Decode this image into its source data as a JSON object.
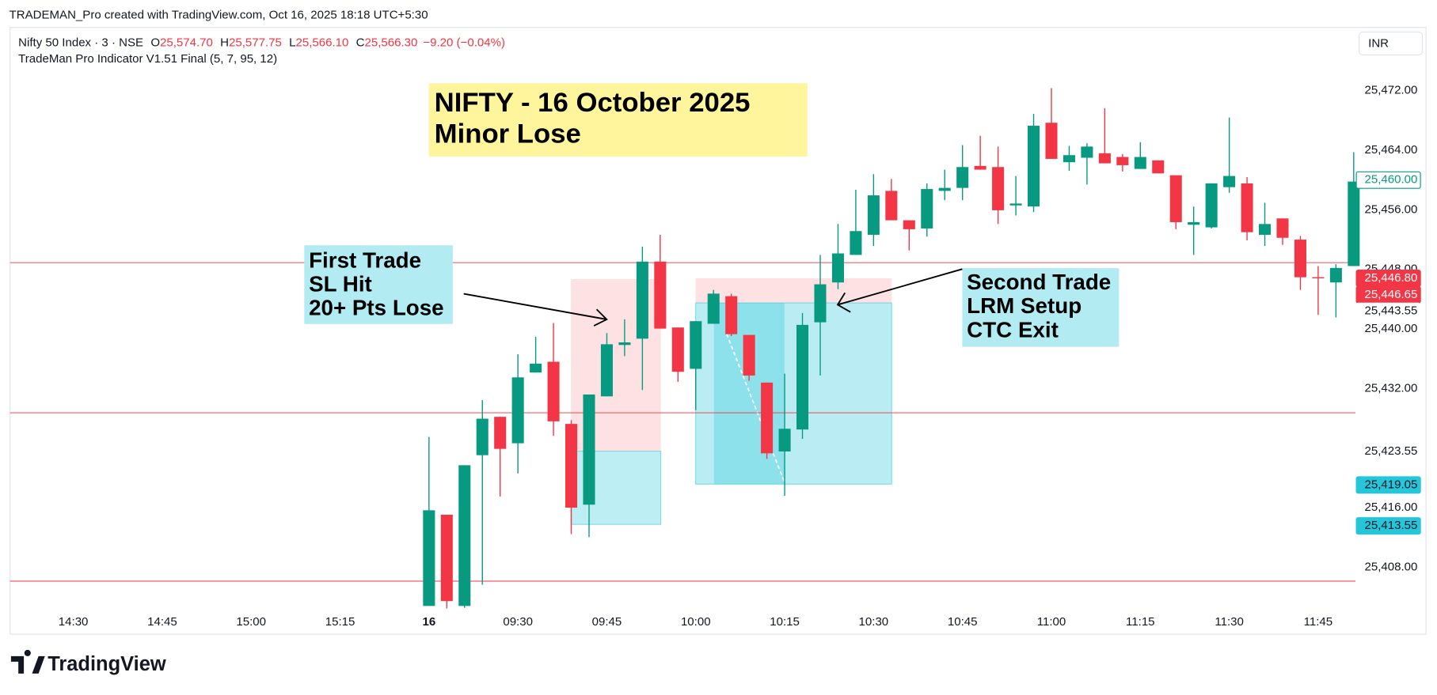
{
  "header": {
    "text": "TRADEMAN_Pro created with TradingView.com, Oct 16, 2025 18:18 UTC+5:30"
  },
  "legend": {
    "symbol": "Nifty 50 Index · 3 · NSE",
    "ohlc": [
      {
        "key": "O",
        "value": "25,574.70"
      },
      {
        "key": "H",
        "value": "25,577.75"
      },
      {
        "key": "L",
        "value": "25,566.10"
      },
      {
        "key": "C",
        "value": "25,566.30"
      }
    ],
    "change": "−9.20 (−0.04%)",
    "indicator": "TradeMan Pro Indicator V1.51 Final (5, 7, 95, 12)"
  },
  "currency": "INR",
  "annotations": {
    "title": [
      "NIFTY - 16 October 2025",
      "Minor Lose"
    ],
    "first_trade": [
      "First Trade",
      "SL Hit",
      "20+ Pts Lose"
    ],
    "second_trade": [
      "Second Trade",
      "LRM Setup",
      "CTC Exit"
    ]
  },
  "logo": "TradingView",
  "chart_data": {
    "type": "candlestick",
    "up_color": "#089981",
    "down_color": "#f23645",
    "grid": false,
    "ylim": [
      25399,
      25480.5
    ],
    "yticks": [
      {
        "value": 25408,
        "label": "25,408.00"
      },
      {
        "value": 25416,
        "label": "25,416.00"
      },
      {
        "value": 25432,
        "label": "25,432.00"
      },
      {
        "value": 25440,
        "label": "25,440.00"
      },
      {
        "value": 25448,
        "label": "25,448.00"
      },
      {
        "value": 25456,
        "label": "25,456.00"
      },
      {
        "value": 25464,
        "label": "25,464.00"
      },
      {
        "value": 25472,
        "label": "25,472.00"
      }
    ],
    "price_labels": [
      {
        "value": 25460,
        "label": "25,460.00",
        "bg": "#ffffff",
        "fg": "#089981",
        "border": "#089981"
      },
      {
        "value": 25446.8,
        "label": "25,446.80",
        "bg": "#f23645",
        "fg": "#ffffff",
        "border": "#f23645"
      },
      {
        "value": 25446.65,
        "label": "25,446.65",
        "bg": "#f23645",
        "fg": "#ffffff",
        "border": "#f23645"
      },
      {
        "value": 25443.55,
        "label": "25,443.55",
        "bg": "#ffffff",
        "fg": "#131722",
        "border": "#ffffff"
      },
      {
        "value": 25423.55,
        "label": "25,423.55",
        "bg": "#ffffff",
        "fg": "#131722",
        "border": "#ffffff"
      },
      {
        "value": 25419.05,
        "label": "25,419.05",
        "bg": "#26c6da",
        "fg": "#131722",
        "border": "#26c6da"
      },
      {
        "value": 25413.55,
        "label": "25,413.55",
        "bg": "#26c6da",
        "fg": "#131722",
        "border": "#26c6da"
      }
    ],
    "categories": [
      "14:30",
      null,
      null,
      null,
      null,
      "14:45",
      null,
      null,
      null,
      null,
      "15:00",
      null,
      null,
      null,
      null,
      "15:15",
      null,
      null,
      null,
      null,
      "16",
      null,
      null,
      null,
      null,
      "09:30",
      null,
      null,
      null,
      null,
      "09:45",
      null,
      null,
      null,
      null,
      "10:00",
      null,
      null,
      null,
      null,
      "10:15",
      null,
      null,
      null,
      null,
      "10:30",
      null,
      null,
      null,
      null,
      "10:45",
      null,
      null,
      null,
      null,
      "11:00",
      null,
      null,
      null,
      null,
      "11:15",
      null,
      null,
      null,
      null,
      "11:30",
      null,
      null,
      null,
      null,
      "11:45",
      null,
      null
    ],
    "open": [
      null,
      null,
      null,
      null,
      null,
      null,
      null,
      null,
      null,
      null,
      null,
      null,
      null,
      null,
      null,
      null,
      null,
      null,
      null,
      null,
      25402.8,
      25415.05,
      25402.8,
      25423.05,
      25428.2,
      25424.65,
      25434.15,
      25435.6,
      25427.25,
      25416.4,
      25430.95,
      25437.85,
      25438.7,
      25449.05,
      25440.2,
      25434.65,
      25440.7,
      25444.4,
      25439.2,
      25432.8,
      25423.55,
      25426.5,
      25440.9,
      25446.25,
      25449.95,
      25452.65,
      25458.55,
      25454.6,
      25453.5,
      25458.55,
      25458.95,
      25461.9,
      25461.75,
      25456.6,
      25456.45,
      25467.7,
      25462.4,
      25463,
      25463.6,
      25463.1,
      25461.5,
      25462.65,
      25460.65,
      25454,
      25453.65,
      25459.05,
      25459.55,
      25452.65,
      25454.85,
      25452,
      25446.95,
      25446.25,
      25448.45
    ],
    "high": [
      null,
      null,
      null,
      null,
      null,
      null,
      null,
      null,
      null,
      null,
      null,
      null,
      null,
      null,
      null,
      null,
      null,
      null,
      null,
      null,
      25425.5,
      25415.05,
      25421.7,
      25430.45,
      25428.2,
      25436.6,
      25438.95,
      25440.8,
      25427.75,
      25431.2,
      25439.45,
      25441.3,
      25451.05,
      25452.65,
      25440.2,
      25441.05,
      25445.25,
      25444.75,
      25439.2,
      25432.8,
      25434,
      25442.15,
      25449.95,
      25454.1,
      25458.7,
      25460.8,
      25460.15,
      25454.6,
      25459.55,
      25461.4,
      25464.7,
      25465.95,
      25464.5,
      25460.55,
      25468.9,
      25472.35,
      25464.6,
      25464.95,
      25469.65,
      25463.5,
      25465.1,
      25462.65,
      25460.65,
      25456.45,
      25459.55,
      25468.4,
      25460.4,
      25456.95,
      25454.85,
      25452.5,
      25448.45,
      25448.7,
      25463.75
    ],
    "low": [
      null,
      null,
      null,
      null,
      null,
      null,
      null,
      null,
      null,
      null,
      null,
      null,
      null,
      null,
      null,
      null,
      null,
      null,
      null,
      null,
      25402.8,
      25402.45,
      25402.55,
      25405.65,
      25417.5,
      25420.6,
      25434.15,
      25425.65,
      25412.45,
      25412.05,
      25430.95,
      25436.35,
      25431.8,
      25440.05,
      25432.9,
      25429.1,
      25440.7,
      25439.05,
      25433.05,
      25422.55,
      25417.6,
      25425.25,
      25433.75,
      25445.35,
      25449.95,
      25451.15,
      25454.6,
      25450.55,
      25452.4,
      25457.3,
      25457.3,
      25461.4,
      25454.1,
      25455.25,
      25455.7,
      25462.85,
      25461.25,
      25459.4,
      25462.25,
      25461.15,
      25461.5,
      25460.9,
      25453.4,
      25449.95,
      25453.5,
      25458.3,
      25451.9,
      25451.15,
      25451.3,
      25445.25,
      25441.9,
      25441.55,
      25448.45
    ],
    "close": [
      null,
      null,
      null,
      null,
      null,
      null,
      null,
      null,
      null,
      null,
      null,
      null,
      null,
      null,
      null,
      null,
      null,
      null,
      null,
      null,
      25415.65,
      25403.45,
      25421.7,
      25427.95,
      25423.9,
      25433.5,
      25435.35,
      25427.6,
      25416,
      25431.2,
      25437.95,
      25438.2,
      25449.05,
      25440.05,
      25434.25,
      25441.05,
      25444.75,
      25439.3,
      25433.75,
      25423.3,
      25426.6,
      25440.55,
      25446,
      25450.15,
      25453.15,
      25457.95,
      25454.6,
      25453.4,
      25458.8,
      25458.95,
      25461.75,
      25461.4,
      25455.95,
      25456.85,
      25467.3,
      25462.85,
      25463.35,
      25464.5,
      25462.25,
      25462,
      25463.1,
      25460.9,
      25454.35,
      25454.35,
      25459.55,
      25460.55,
      25453,
      25454.1,
      25452.25,
      25446.95,
      25446.85,
      25448.2,
      25459.8
    ]
  }
}
